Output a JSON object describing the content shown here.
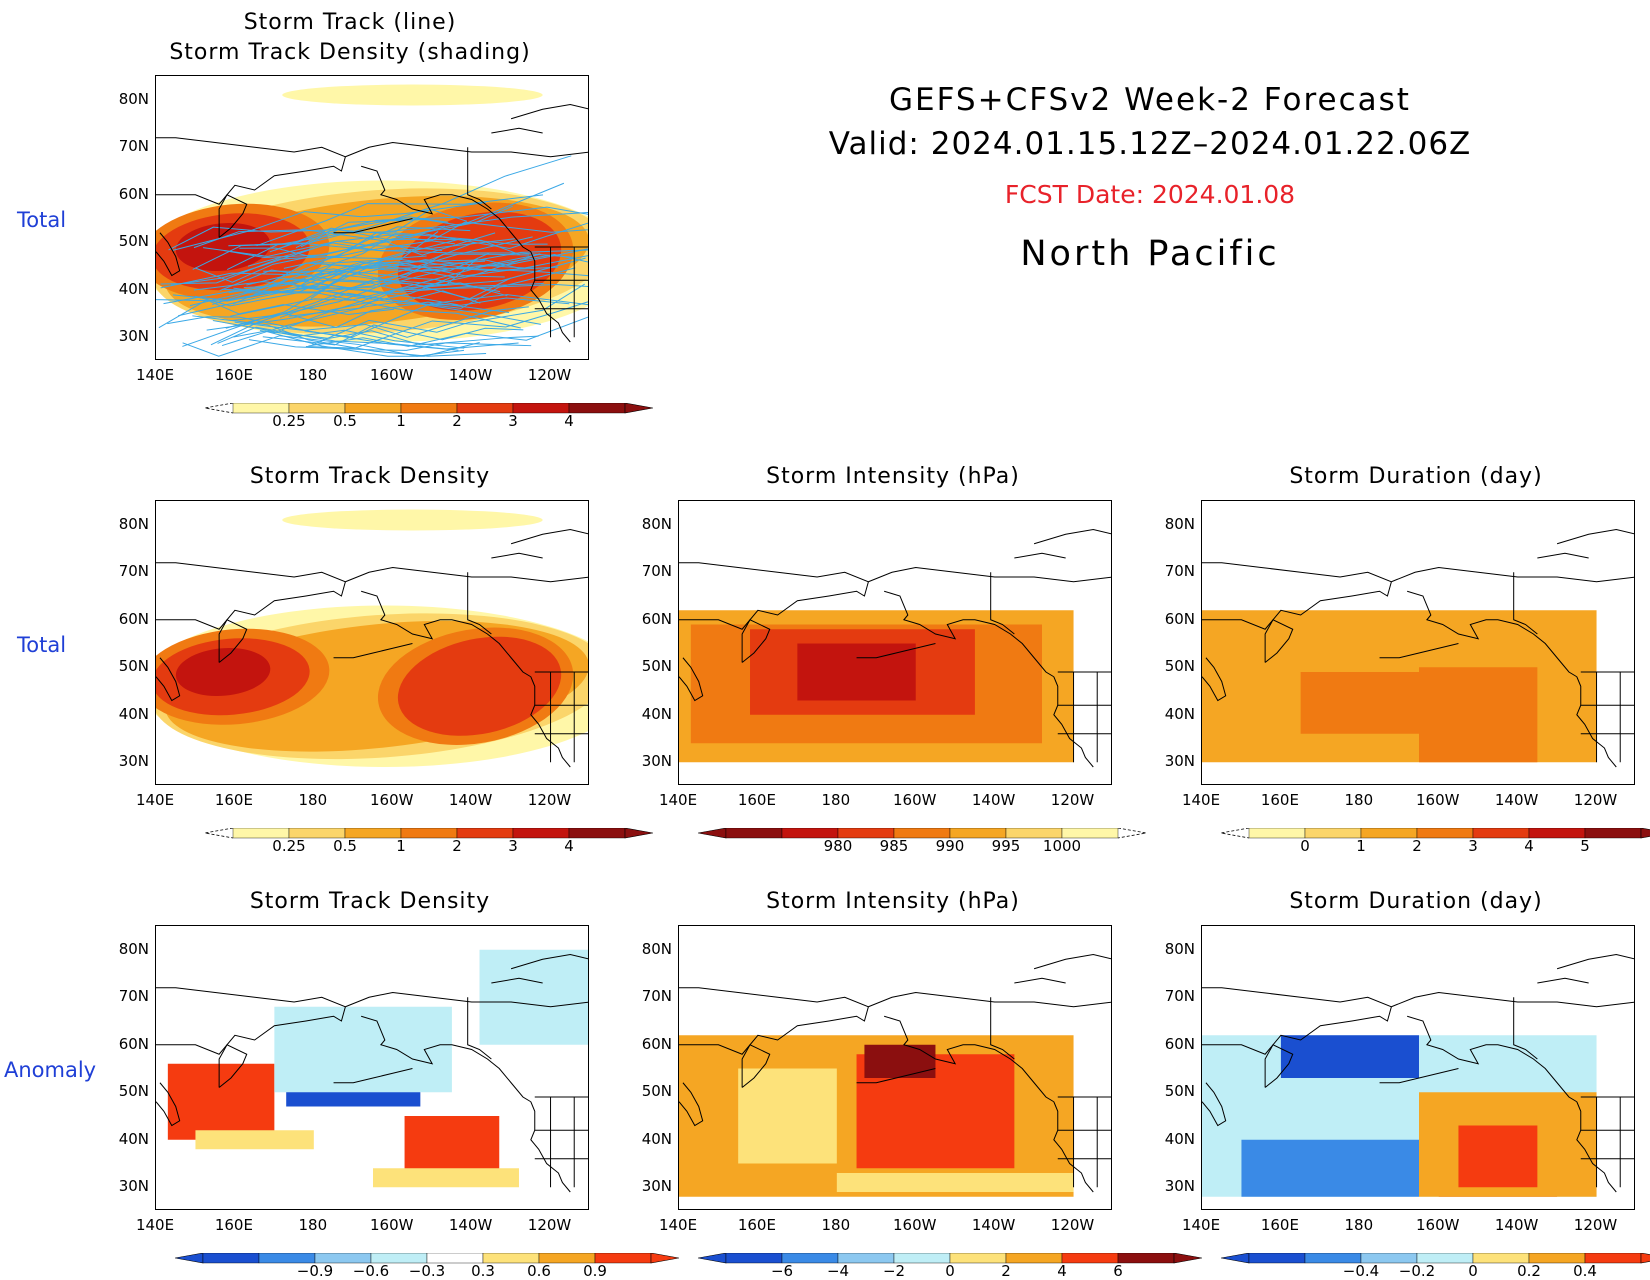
{
  "header": {
    "line1": "GEFS+CFSv2 Week-2 Forecast",
    "line2": "Valid: 2024.01.15.12Z–2024.01.22.06Z",
    "fcst": "FCST Date: 2024.01.08",
    "region": "North Pacific",
    "fcst_color": "#e8222a"
  },
  "row_labels": [
    "Total",
    "Total",
    "Anomaly"
  ],
  "lat_labels": [
    "80N",
    "70N",
    "60N",
    "50N",
    "40N",
    "30N"
  ],
  "lon_labels": [
    "140E",
    "160E",
    "180",
    "160W",
    "140W",
    "120W"
  ],
  "panels": {
    "p0": {
      "title": "Storm Track (line)\nStorm Track Density (shading)"
    },
    "p1": {
      "title": "Storm Track Density"
    },
    "p2": {
      "title": "Storm Intensity (hPa)"
    },
    "p3": {
      "title": "Storm Duration (day)"
    },
    "p4": {
      "title": "Storm Track Density"
    },
    "p5": {
      "title": "Storm Intensity (hPa)"
    },
    "p6": {
      "title": "Storm Duration (day)"
    }
  },
  "colorbars": {
    "density": {
      "labels": [
        "0.25",
        "0.5",
        "1",
        "2",
        "3",
        "4"
      ],
      "colors": [
        "#fff7a8",
        "#fbd56a",
        "#f5a623",
        "#f07a12",
        "#e43b10",
        "#c3140e",
        "#8b0f0f"
      ]
    },
    "intensity": {
      "labels": [
        "980",
        "985",
        "990",
        "995",
        "1000"
      ],
      "colors": [
        "#8b0f0f",
        "#c3140e",
        "#e43b10",
        "#f07a12",
        "#f5a623",
        "#fbd56a",
        "#fff7a8"
      ]
    },
    "duration": {
      "labels": [
        "0",
        "1",
        "2",
        "3",
        "4",
        "5"
      ],
      "colors": [
        "#fff7a8",
        "#fbd56a",
        "#f5a623",
        "#f07a12",
        "#e43b10",
        "#c3140e",
        "#8b0f0f"
      ]
    },
    "density_anom": {
      "labels": [
        "−0.9",
        "−0.6",
        "−0.3",
        "0.3",
        "0.6",
        "0.9"
      ],
      "colors": [
        "#1a4fd0",
        "#3a8ae6",
        "#8cc8f0",
        "#bfeef6",
        "#ffffff",
        "#fde27a",
        "#f5a623",
        "#f53b10"
      ]
    },
    "intensity_anom": {
      "labels": [
        "−6",
        "−4",
        "−2",
        "0",
        "2",
        "4",
        "6"
      ],
      "colors": [
        "#1a4fd0",
        "#3a8ae6",
        "#8cc8f0",
        "#bfeef6",
        "#fde27a",
        "#f5a623",
        "#f53b10",
        "#8b0f0f"
      ]
    },
    "duration_anom": {
      "labels": [
        "−0.4",
        "−0.2",
        "0",
        "0.2",
        "0.4"
      ],
      "colors": [
        "#1a4fd0",
        "#3a8ae6",
        "#8cc8f0",
        "#bfeef6",
        "#fde27a",
        "#f5a623",
        "#f53b10"
      ]
    }
  }
}
